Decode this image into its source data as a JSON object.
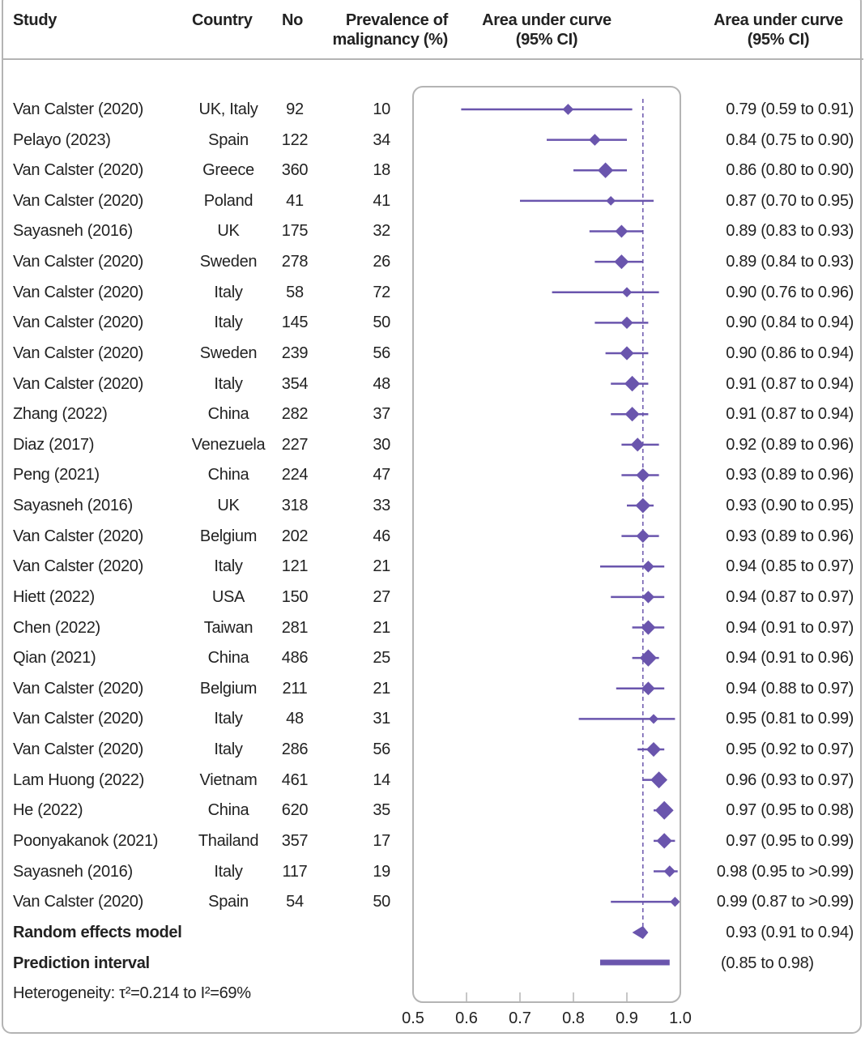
{
  "chart_data": {
    "type": "forest",
    "headers": {
      "study": "Study",
      "country": "Country",
      "no": "No",
      "prevalence": [
        "Prevalence of",
        "malignancy (%)"
      ],
      "plot": [
        "Area under curve",
        "(95% CI)"
      ],
      "auc": [
        "Area under curve",
        "(95% CI)"
      ]
    },
    "rows": [
      {
        "study": "Van Calster (2020)",
        "country": "UK, Italy",
        "no": "92",
        "prev": "10",
        "auc": 0.79,
        "lo": 0.59,
        "hi": 0.91,
        "label": "0.79 (0.59 to 0.91)"
      },
      {
        "study": "Pelayo (2023)",
        "country": "Spain",
        "no": "122",
        "prev": "34",
        "auc": 0.84,
        "lo": 0.75,
        "hi": 0.9,
        "label": "0.84 (0.75 to 0.90)"
      },
      {
        "study": "Van Calster (2020)",
        "country": "Greece",
        "no": "360",
        "prev": "18",
        "auc": 0.86,
        "lo": 0.8,
        "hi": 0.9,
        "label": "0.86 (0.80 to 0.90)"
      },
      {
        "study": "Van Calster (2020)",
        "country": "Poland",
        "no": "41",
        "prev": "41",
        "auc": 0.87,
        "lo": 0.7,
        "hi": 0.95,
        "label": "0.87 (0.70 to 0.95)"
      },
      {
        "study": "Sayasneh (2016)",
        "country": "UK",
        "no": "175",
        "prev": "32",
        "auc": 0.89,
        "lo": 0.83,
        "hi": 0.93,
        "label": "0.89 (0.83 to 0.93)"
      },
      {
        "study": "Van Calster (2020)",
        "country": "Sweden",
        "no": "278",
        "prev": "26",
        "auc": 0.89,
        "lo": 0.84,
        "hi": 0.93,
        "label": "0.89 (0.84 to 0.93)"
      },
      {
        "study": "Van Calster (2020)",
        "country": "Italy",
        "no": "58",
        "prev": "72",
        "auc": 0.9,
        "lo": 0.76,
        "hi": 0.96,
        "label": "0.90 (0.76 to 0.96)"
      },
      {
        "study": "Van Calster (2020)",
        "country": "Italy",
        "no": "145",
        "prev": "50",
        "auc": 0.9,
        "lo": 0.84,
        "hi": 0.94,
        "label": "0.90 (0.84 to 0.94)"
      },
      {
        "study": "Van Calster (2020)",
        "country": "Sweden",
        "no": "239",
        "prev": "56",
        "auc": 0.9,
        "lo": 0.86,
        "hi": 0.94,
        "label": "0.90 (0.86 to 0.94)"
      },
      {
        "study": "Van Calster (2020)",
        "country": "Italy",
        "no": "354",
        "prev": "48",
        "auc": 0.91,
        "lo": 0.87,
        "hi": 0.94,
        "label": "0.91 (0.87 to 0.94)"
      },
      {
        "study": "Zhang (2022)",
        "country": "China",
        "no": "282",
        "prev": "37",
        "auc": 0.91,
        "lo": 0.87,
        "hi": 0.94,
        "label": "0.91 (0.87 to 0.94)"
      },
      {
        "study": "Diaz (2017)",
        "country": "Venezuela",
        "no": "227",
        "prev": "30",
        "auc": 0.92,
        "lo": 0.89,
        "hi": 0.96,
        "label": "0.92 (0.89 to 0.96)"
      },
      {
        "study": "Peng (2021)",
        "country": "China",
        "no": "224",
        "prev": "47",
        "auc": 0.93,
        "lo": 0.89,
        "hi": 0.96,
        "label": "0.93 (0.89 to 0.96)"
      },
      {
        "study": "Sayasneh (2016)",
        "country": "UK",
        "no": "318",
        "prev": "33",
        "auc": 0.93,
        "lo": 0.9,
        "hi": 0.95,
        "label": "0.93 (0.90 to 0.95)"
      },
      {
        "study": "Van Calster (2020)",
        "country": "Belgium",
        "no": "202",
        "prev": "46",
        "auc": 0.93,
        "lo": 0.89,
        "hi": 0.96,
        "label": "0.93 (0.89 to 0.96)"
      },
      {
        "study": "Van Calster (2020)",
        "country": "Italy",
        "no": "121",
        "prev": "21",
        "auc": 0.94,
        "lo": 0.85,
        "hi": 0.97,
        "label": "0.94 (0.85 to 0.97)"
      },
      {
        "study": "Hiett (2022)",
        "country": "USA",
        "no": "150",
        "prev": "27",
        "auc": 0.94,
        "lo": 0.87,
        "hi": 0.97,
        "label": "0.94 (0.87 to 0.97)"
      },
      {
        "study": "Chen (2022)",
        "country": "Taiwan",
        "no": "281",
        "prev": "21",
        "auc": 0.94,
        "lo": 0.91,
        "hi": 0.97,
        "label": "0.94 (0.91 to 0.97)"
      },
      {
        "study": "Qian (2021)",
        "country": "China",
        "no": "486",
        "prev": "25",
        "auc": 0.94,
        "lo": 0.91,
        "hi": 0.96,
        "label": "0.94 (0.91 to 0.96)"
      },
      {
        "study": "Van Calster (2020)",
        "country": "Belgium",
        "no": "211",
        "prev": "21",
        "auc": 0.94,
        "lo": 0.88,
        "hi": 0.97,
        "label": "0.94 (0.88 to 0.97)"
      },
      {
        "study": "Van Calster (2020)",
        "country": "Italy",
        "no": "48",
        "prev": "31",
        "auc": 0.95,
        "lo": 0.81,
        "hi": 0.99,
        "label": "0.95 (0.81 to 0.99)"
      },
      {
        "study": "Van Calster (2020)",
        "country": "Italy",
        "no": "286",
        "prev": "56",
        "auc": 0.95,
        "lo": 0.92,
        "hi": 0.97,
        "label": "0.95 (0.92 to 0.97)"
      },
      {
        "study": "Lam Huong (2022)",
        "country": "Vietnam",
        "no": "461",
        "prev": "14",
        "auc": 0.96,
        "lo": 0.93,
        "hi": 0.97,
        "label": "0.96 (0.93 to 0.97)"
      },
      {
        "study": "He (2022)",
        "country": "China",
        "no": "620",
        "prev": "35",
        "auc": 0.97,
        "lo": 0.95,
        "hi": 0.98,
        "label": "0.97 (0.95 to 0.98)"
      },
      {
        "study": "Poonyakanok (2021)",
        "country": "Thailand",
        "no": "357",
        "prev": "17",
        "auc": 0.97,
        "lo": 0.95,
        "hi": 0.99,
        "label": "0.97 (0.95 to 0.99)"
      },
      {
        "study": "Sayasneh (2016)",
        "country": "Italy",
        "no": "117",
        "prev": "19",
        "auc": 0.98,
        "lo": 0.95,
        "hi": 0.995,
        "label": "0.98 (0.95 to >0.99)"
      },
      {
        "study": "Van Calster (2020)",
        "country": "Spain",
        "no": "54",
        "prev": "50",
        "auc": 0.99,
        "lo": 0.87,
        "hi": 0.995,
        "label": "0.99 (0.87 to >0.99)"
      }
    ],
    "pooled": {
      "name": "Random effects model",
      "auc": 0.93,
      "lo": 0.91,
      "hi": 0.94,
      "label": "0.93 (0.91 to 0.94)"
    },
    "prediction": {
      "name": "Prediction interval",
      "lo": 0.85,
      "hi": 0.98,
      "label": "(0.85 to 0.98)"
    },
    "heterogeneity": "Heterogeneity: τ²=0.214 to I²=69%",
    "reference_line": 0.93,
    "xlim": [
      0.5,
      1.0
    ],
    "xticks": [
      "0.5",
      "0.6",
      "0.7",
      "0.8",
      "0.9",
      "1.0"
    ],
    "color": "#6a55ad"
  }
}
